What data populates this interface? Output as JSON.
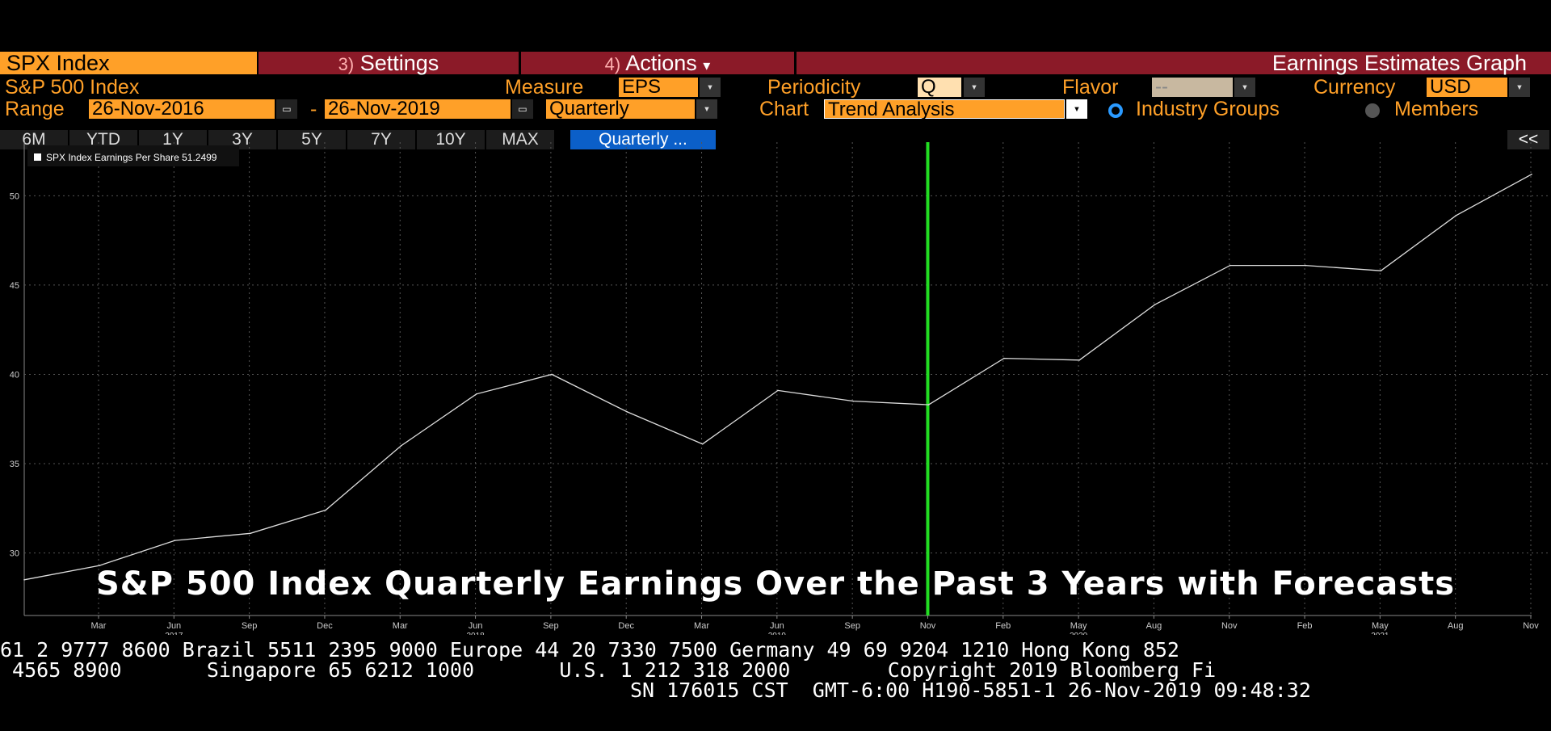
{
  "toolbar": {
    "ticker": "SPX Index",
    "settings_num": "3)",
    "settings_label": "Settings",
    "actions_num": "4)",
    "actions_label": "Actions",
    "actions_caret": "▾",
    "title": "Earnings Estimates Graph"
  },
  "controls": {
    "name": "S&P 500 Index",
    "measure_label": "Measure",
    "measure_value": "EPS",
    "periodicity_label": "Periodicity",
    "periodicity_value": "Q",
    "flavor_label": "Flavor",
    "flavor_value": "--",
    "currency_label": "Currency",
    "currency_value": "USD",
    "range_label": "Range",
    "range_start": "26-Nov-2016",
    "range_sep": "-",
    "range_end": "26-Nov-2019",
    "frequency_value": "Quarterly",
    "chart_label": "Chart",
    "chart_value": "Trend Analysis",
    "radio_industry": "Industry Groups",
    "radio_members": "Members",
    "collapse": "<<",
    "range_buttons": [
      "6M",
      "YTD",
      "1Y",
      "3Y",
      "5Y",
      "7Y",
      "10Y",
      "MAX"
    ],
    "quarterly_tab": "Quarterly ..."
  },
  "colors": {
    "accent": "#ffa028",
    "toolbar": "#8b1a28",
    "line": "#dddddd",
    "marker": "#22dd22",
    "selected_tab": "#0b5fc8"
  },
  "overlay_title": "S&P 500 Index Quarterly Earnings Over the Past 3 Years with Forecasts",
  "chart_data": {
    "type": "line",
    "legend": "SPX Index Earnings Per Share 51.2499",
    "legend_position": "top-left",
    "grid": true,
    "y_ticks": [
      "30",
      "35",
      "40",
      "45",
      "50"
    ],
    "ylim": [
      26.5,
      53
    ],
    "x_ticks": [
      {
        "label": "Mar",
        "year": ""
      },
      {
        "label": "Jun",
        "year": "2017"
      },
      {
        "label": "Sep",
        "year": ""
      },
      {
        "label": "Dec",
        "year": ""
      },
      {
        "label": "Mar",
        "year": ""
      },
      {
        "label": "Jun",
        "year": "2018"
      },
      {
        "label": "Sep",
        "year": ""
      },
      {
        "label": "Dec",
        "year": ""
      },
      {
        "label": "Mar",
        "year": ""
      },
      {
        "label": "Jun",
        "year": "2019"
      },
      {
        "label": "Sep",
        "year": ""
      },
      {
        "label": "Nov",
        "year": ""
      },
      {
        "label": "Feb",
        "year": ""
      },
      {
        "label": "May",
        "year": "2020"
      },
      {
        "label": "Aug",
        "year": ""
      },
      {
        "label": "Nov",
        "year": ""
      },
      {
        "label": "Feb",
        "year": ""
      },
      {
        "label": "May",
        "year": "2021"
      },
      {
        "label": "Aug",
        "year": ""
      },
      {
        "label": "Nov",
        "year": ""
      }
    ],
    "series": [
      {
        "name": "SPX Index Earnings Per Share",
        "values": [
          28.5,
          29.3,
          30.7,
          31.1,
          32.4,
          36.0,
          38.9,
          40.0,
          37.9,
          36.1,
          39.1,
          38.5,
          38.3,
          40.9,
          40.8,
          43.9,
          46.1,
          46.1,
          45.8,
          48.9,
          51.2
        ]
      }
    ],
    "current_marker": "Nov"
  },
  "footer": {
    "line1": "61 2 9777 8600 Brazil 5511 2395 9000 Europe 44 20 7330 7500 Germany 49 69 9204 1210 Hong Kong 852",
    "line2": " 4565 8900       Singapore 65 6212 1000       U.S. 1 212 318 2000        Copyright 2019 Bloomberg Fi",
    "line3": "SN 176015 CST  GMT-6:00 H190-5851-1 26-Nov-2019 09:48:32"
  }
}
